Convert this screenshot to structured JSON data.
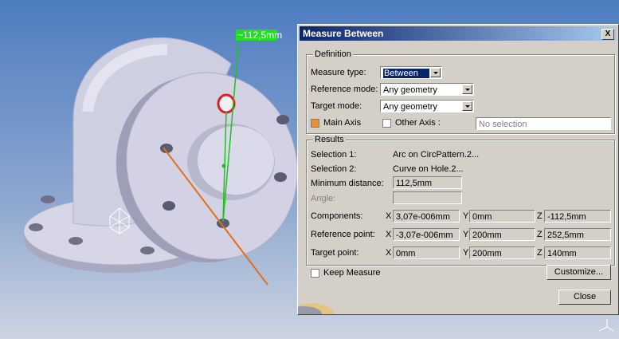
{
  "viewport": {
    "measure_label": "~112,5mm"
  },
  "dialog": {
    "title": "Measure Between",
    "close_icon": "X",
    "definition": {
      "title": "Definition",
      "measure_type": {
        "label": "Measure type:",
        "value": "Between"
      },
      "reference_mode": {
        "label": "Reference mode:",
        "value": "Any geometry"
      },
      "target_mode": {
        "label": "Target mode:",
        "value": "Any geometry"
      },
      "main_axis": "Main Axis",
      "other_axis": "Other Axis :",
      "other_axis_field": "No selection"
    },
    "results": {
      "title": "Results",
      "selection_1": {
        "label": "Selection 1:",
        "value": "Arc on CircPattern.2..."
      },
      "selection_2": {
        "label": "Selection 2:",
        "value": "Curve on Hole.2..."
      },
      "minimum_distance": {
        "label": "Minimum distance:",
        "value": "112,5mm"
      },
      "angle": {
        "label": "Angle:"
      },
      "components": {
        "label": "Components:",
        "x_label": "X",
        "x": "3,07e-006mm",
        "y_label": "Y",
        "y": "0mm",
        "z_label": "Z",
        "z": "-112,5mm"
      },
      "reference_point": {
        "label": "Reference point:",
        "x_label": "X",
        "x": "-3,07e-006mm",
        "y_label": "Y",
        "y": "200mm",
        "z_label": "Z",
        "z": "252,5mm"
      },
      "target_point": {
        "label": "Target point:",
        "x_label": "X",
        "x": "0mm",
        "y_label": "Y",
        "y": "200mm",
        "z_label": "Z",
        "z": "140mm"
      }
    },
    "keep_measure": "Keep Measure",
    "customize_button": "Customize...",
    "close_button": "Close"
  }
}
